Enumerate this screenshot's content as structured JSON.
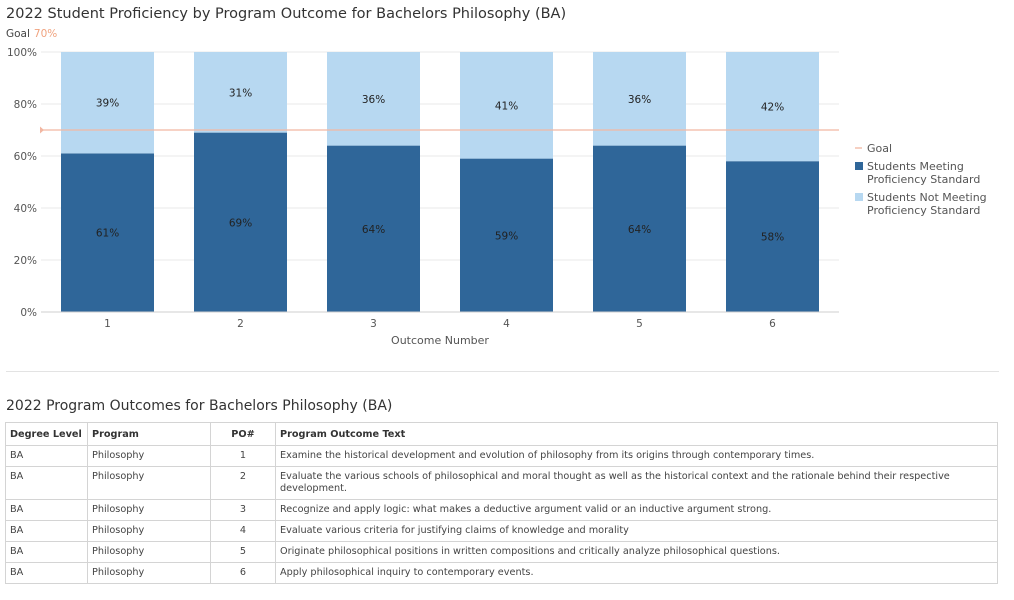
{
  "chart_title": "2022 Student Proficiency by Program Outcome for Bachelors Philosophy (BA)",
  "goal_caption": {
    "label": "Goal",
    "value": "70%"
  },
  "colors": {
    "meeting": "#2f6699",
    "not_meeting": "#b7d8f1",
    "goal": "#f2b7a2",
    "grid": "#e8e8e8"
  },
  "chart_data": {
    "type": "bar",
    "stacked": true,
    "categories": [
      "1",
      "2",
      "3",
      "4",
      "5",
      "6"
    ],
    "series": [
      {
        "name": "Students Meeting Proficiency Standard",
        "values": [
          61,
          69,
          64,
          59,
          64,
          58
        ],
        "labels": [
          "61%",
          "69%",
          "64%",
          "59%",
          "64%",
          "58%"
        ]
      },
      {
        "name": "Students Not Meeting Proficiency Standard",
        "values": [
          39,
          31,
          36,
          41,
          36,
          42
        ],
        "labels": [
          "39%",
          "31%",
          "36%",
          "41%",
          "36%",
          "42%"
        ]
      }
    ],
    "goal": {
      "name": "Goal",
      "value": 70
    },
    "xlabel": "Outcome Number",
    "ylabel": "",
    "ylim": [
      0,
      100
    ],
    "yticks": [
      {
        "value": 0,
        "label": "0%"
      },
      {
        "value": 20,
        "label": "20%"
      },
      {
        "value": 40,
        "label": "40%"
      },
      {
        "value": 60,
        "label": "60%"
      },
      {
        "value": 80,
        "label": "80%"
      },
      {
        "value": 100,
        "label": "100%"
      }
    ],
    "grid": true,
    "legend_position": "right",
    "legend": [
      {
        "kind": "line",
        "lines": [
          "Goal"
        ]
      },
      {
        "kind": "box",
        "lines": [
          "Students Meeting",
          "Proficiency Standard"
        ]
      },
      {
        "kind": "box",
        "lines": [
          "Students Not Meeting",
          "Proficiency Standard"
        ]
      }
    ]
  },
  "table": {
    "title": "2022 Program Outcomes for Bachelors Philosophy (BA)",
    "columns": [
      "Degree Level",
      "Program",
      "PO#",
      "Program Outcome Text"
    ],
    "rows": [
      [
        "BA",
        "Philosophy",
        "1",
        "Examine the historical development and evolution of philosophy from its origins through contemporary times."
      ],
      [
        "BA",
        "Philosophy",
        "2",
        "Evaluate the various schools of philosophical and moral thought as well as the historical context and the rationale behind their respective development."
      ],
      [
        "BA",
        "Philosophy",
        "3",
        "Recognize and apply logic: what makes a deductive argument valid or an inductive argument strong."
      ],
      [
        "BA",
        "Philosophy",
        "4",
        "Evaluate various criteria for justifying claims of knowledge and morality"
      ],
      [
        "BA",
        "Philosophy",
        "5",
        "Originate philosophical positions in written compositions and critically analyze philosophical questions."
      ],
      [
        "BA",
        "Philosophy",
        "6",
        "Apply philosophical inquiry to contemporary events."
      ]
    ]
  }
}
